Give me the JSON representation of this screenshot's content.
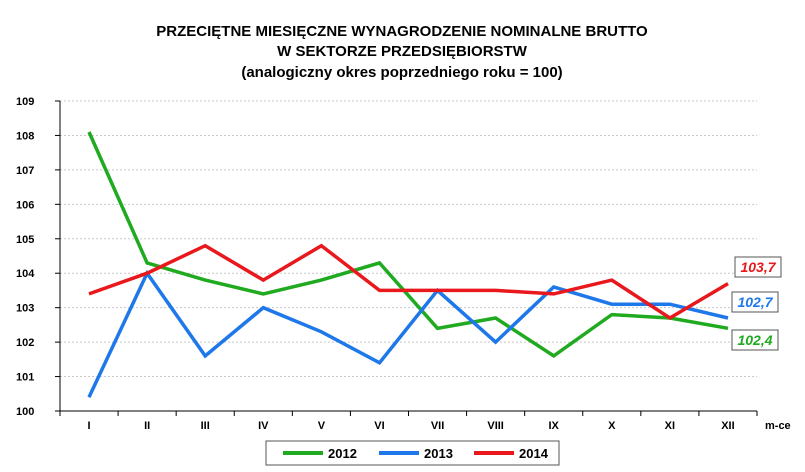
{
  "chart_data": {
    "type": "line",
    "title": [
      "PRZECIĘTNE MIESIĘCZNE WYNAGRODZENIE NOMINALNE BRUTTO",
      "W SEKTORZE PRZEDSIĘBIORSTW",
      "(analogiczny okres poprzedniego roku = 100)"
    ],
    "xlabel": "m-ce",
    "ylabel": "",
    "categories": [
      "I",
      "II",
      "III",
      "IV",
      "V",
      "VI",
      "VII",
      "VIII",
      "IX",
      "X",
      "XI",
      "XII"
    ],
    "ylim": [
      100,
      109
    ],
    "yticks": [
      "100",
      "101",
      "102",
      "103",
      "104",
      "105",
      "106",
      "107",
      "108",
      "109"
    ],
    "grid": true,
    "legend_position": "bottom",
    "series": [
      {
        "name": "2012",
        "color": "#1faa1f",
        "values": [
          108.1,
          104.3,
          103.8,
          103.4,
          103.8,
          104.3,
          102.4,
          102.7,
          101.6,
          102.8,
          102.7,
          102.4
        ],
        "end_label": "102,4"
      },
      {
        "name": "2013",
        "color": "#1e78ea",
        "values": [
          100.4,
          104.0,
          101.6,
          103.0,
          102.3,
          101.4,
          103.5,
          102.0,
          103.6,
          103.1,
          103.1,
          102.7
        ],
        "end_label": "102,7"
      },
      {
        "name": "2014",
        "color": "#e8181c",
        "values": [
          103.4,
          104.0,
          104.8,
          103.8,
          104.8,
          103.5,
          103.5,
          103.5,
          103.4,
          103.8,
          102.7,
          103.7
        ],
        "end_label": "103,7"
      }
    ]
  }
}
